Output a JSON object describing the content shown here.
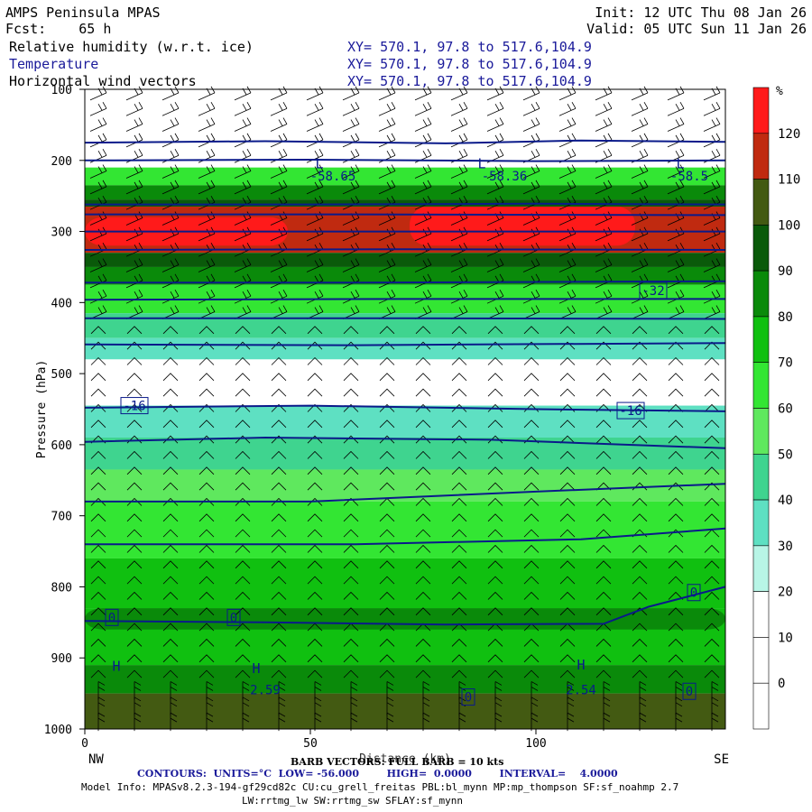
{
  "header": {
    "left_title": "AMPS Peninsula MPAS",
    "left_fcst": "Fcst:    65 h",
    "init": "Init: 12 UTC Thu 08 Jan 26",
    "valid": "Valid: 05 UTC Sun 11 Jan 26",
    "fields": [
      {
        "name": "Relative humidity (w.r.t. ice)",
        "xy": "XY= 570.1, 97.8 to 517.6,104.9"
      },
      {
        "name": "Temperature",
        "xy": "XY= 570.1, 97.8 to 517.6,104.9"
      },
      {
        "name": "Horizontal wind vectors",
        "xy": "XY= 570.1, 97.8 to 517.6,104.9"
      }
    ]
  },
  "chart_data": {
    "type": "heatmap",
    "title": "Relative humidity (w.r.t. ice)",
    "xlabel": "Distance (km)",
    "ylabel": "Pressure (hPa)",
    "x_range": [
      0,
      142
    ],
    "y_range": [
      1000,
      100
    ],
    "y_scale": "linear",
    "x_ticks": [
      0,
      50,
      100
    ],
    "y_ticks": [
      100,
      200,
      300,
      400,
      500,
      600,
      700,
      800,
      900,
      1000
    ],
    "x_end_labels": [
      "NW",
      "SE"
    ],
    "colorbar": {
      "unit": "%",
      "levels": [
        0,
        10,
        20,
        30,
        40,
        50,
        60,
        70,
        80,
        90,
        100,
        110,
        120
      ],
      "colors": [
        "#ffffff",
        "#ffffff",
        "#ffffff",
        "#b8f5e6",
        "#5ee0c2",
        "#3fd48f",
        "#5fe85e",
        "#33e633",
        "#10c010",
        "#0a8a0a",
        "#0a5a0a",
        "#435a12",
        "#c02a10",
        "#ff1a1a"
      ]
    },
    "rh_bands": [
      {
        "p_top": 100,
        "p_bot": 210,
        "rh": 15
      },
      {
        "p_top": 210,
        "p_bot": 235,
        "rh": 60
      },
      {
        "p_top": 235,
        "p_bot": 255,
        "rh": 85
      },
      {
        "p_top": 255,
        "p_bot": 265,
        "rh": 95
      },
      {
        "p_top": 265,
        "p_bot": 330,
        "rh": 112
      },
      {
        "p_top": 330,
        "p_bot": 350,
        "rh": 95
      },
      {
        "p_top": 350,
        "p_bot": 375,
        "rh": 80
      },
      {
        "p_top": 375,
        "p_bot": 415,
        "rh": 60
      },
      {
        "p_top": 415,
        "p_bot": 450,
        "rh": 45
      },
      {
        "p_top": 450,
        "p_bot": 480,
        "rh": 35
      },
      {
        "p_top": 480,
        "p_bot": 545,
        "rh": 15
      },
      {
        "p_top": 545,
        "p_bot": 590,
        "rh": 35
      },
      {
        "p_top": 590,
        "p_bot": 635,
        "rh": 40
      },
      {
        "p_top": 635,
        "p_bot": 680,
        "rh": 55
      },
      {
        "p_top": 680,
        "p_bot": 760,
        "rh": 65
      },
      {
        "p_top": 760,
        "p_bot": 830,
        "rh": 75
      },
      {
        "p_top": 830,
        "p_bot": 910,
        "rh": 70
      },
      {
        "p_top": 910,
        "p_bot": 950,
        "rh": 85
      },
      {
        "p_top": 950,
        "p_bot": 1000,
        "rh": 105
      }
    ],
    "rh_patches": [
      {
        "x0": 0,
        "x1": 45,
        "p_top": 280,
        "p_bot": 320,
        "rh": 125
      },
      {
        "x0": 72,
        "x1": 122,
        "p_top": 265,
        "p_bot": 320,
        "rh": 125
      },
      {
        "x0": 0,
        "x1": 142,
        "p_top": 830,
        "p_bot": 860,
        "rh": 80
      }
    ],
    "temperature_contour_levels_c": [
      -56,
      -52,
      -48,
      -44,
      -40,
      -36,
      -32,
      -28,
      -24,
      -20,
      -16,
      -12,
      -8,
      -4,
      0
    ],
    "temperature_contours": [
      {
        "level": -56,
        "p": [
          [
            0,
            175
          ],
          [
            40,
            173
          ],
          [
            80,
            176
          ],
          [
            110,
            172
          ],
          [
            142,
            174
          ]
        ]
      },
      {
        "level": -52,
        "p": [
          [
            0,
            200
          ],
          [
            50,
            199
          ],
          [
            100,
            201
          ],
          [
            142,
            200
          ]
        ]
      },
      {
        "level": -48,
        "p": [
          [
            0,
            262
          ],
          [
            50,
            262
          ],
          [
            100,
            261
          ],
          [
            142,
            262
          ]
        ]
      },
      {
        "level": -44,
        "p": [
          [
            0,
            276
          ],
          [
            60,
            276
          ],
          [
            142,
            277
          ]
        ]
      },
      {
        "level": -40,
        "p": [
          [
            0,
            300
          ],
          [
            70,
            300
          ],
          [
            142,
            300
          ]
        ]
      },
      {
        "level": -36,
        "p": [
          [
            0,
            326
          ],
          [
            70,
            325
          ],
          [
            142,
            326
          ]
        ]
      },
      {
        "level": -32,
        "p": [
          [
            0,
            372
          ],
          [
            60,
            372
          ],
          [
            142,
            370
          ]
        ]
      },
      {
        "level": -28,
        "p": [
          [
            0,
            396
          ],
          [
            70,
            395
          ],
          [
            142,
            395
          ]
        ]
      },
      {
        "level": -24,
        "p": [
          [
            0,
            422
          ],
          [
            70,
            422
          ],
          [
            142,
            423
          ]
        ]
      },
      {
        "level": -20,
        "p": [
          [
            0,
            459
          ],
          [
            60,
            460
          ],
          [
            142,
            457
          ]
        ]
      },
      {
        "level": -16,
        "p": [
          [
            0,
            548
          ],
          [
            50,
            545
          ],
          [
            100,
            550
          ],
          [
            142,
            553
          ]
        ]
      },
      {
        "level": -12,
        "p": [
          [
            0,
            596
          ],
          [
            40,
            590
          ],
          [
            90,
            593
          ],
          [
            142,
            605
          ]
        ]
      },
      {
        "level": -8,
        "p": [
          [
            0,
            680
          ],
          [
            50,
            680
          ],
          [
            100,
            666
          ],
          [
            142,
            655
          ]
        ]
      },
      {
        "level": -4,
        "p": [
          [
            0,
            740
          ],
          [
            60,
            740
          ],
          [
            110,
            733
          ],
          [
            142,
            718
          ]
        ]
      },
      {
        "level": 0,
        "p": [
          [
            0,
            848
          ],
          [
            40,
            850
          ],
          [
            80,
            853
          ],
          [
            115,
            852
          ],
          [
            125,
            828
          ],
          [
            142,
            800
          ]
        ]
      }
    ],
    "contour_labels": [
      {
        "text": "-58.65",
        "x": 55,
        "p": 222
      },
      {
        "text": "-58.36",
        "x": 93,
        "p": 222
      },
      {
        "text": "-58.5",
        "x": 134,
        "p": 222
      },
      {
        "text": "-32",
        "x": 126,
        "p": 383
      },
      {
        "text": "-16",
        "x": 11,
        "p": 545
      },
      {
        "text": "-16",
        "x": 121,
        "p": 552
      },
      {
        "text": "0",
        "x": 6,
        "p": 843
      },
      {
        "text": "0",
        "x": 33,
        "p": 843
      },
      {
        "text": "0",
        "x": 135,
        "p": 808
      },
      {
        "text": "0",
        "x": 85,
        "p": 955
      },
      {
        "text": "0",
        "x": 134,
        "p": 947
      },
      {
        "text": "2.59",
        "x": 40,
        "p": 945
      },
      {
        "text": "2.54",
        "x": 110,
        "p": 945
      }
    ],
    "extrema_marks": [
      {
        "text": "L",
        "x": 52,
        "p": 205
      },
      {
        "text": "L",
        "x": 88,
        "p": 205
      },
      {
        "text": "L",
        "x": 132,
        "p": 205
      },
      {
        "text": "H",
        "x": 7,
        "p": 912
      },
      {
        "text": "H",
        "x": 38,
        "p": 915
      },
      {
        "text": "H",
        "x": 110,
        "p": 910
      }
    ]
  },
  "footer": {
    "x_axis_label": "Distance (km)",
    "barb_note": "BARB VECTORS: FULL BARB = 10 kts",
    "contours_line": "CONTOURS:  UNITS=°C  LOW= -56.000        HIGH=  0.0000        INTERVAL=    4.0000",
    "model_info": "Model Info: MPASv8.2.3-194-gf29cd82c CU:cu_grell_freitas PBL:bl_mynn MP:mp_thompson SF:sf_noahmp 2.7",
    "model_info2": "LW:rrtmg_lw SW:rrtmg_sw SFLAY:sf_mynn"
  }
}
